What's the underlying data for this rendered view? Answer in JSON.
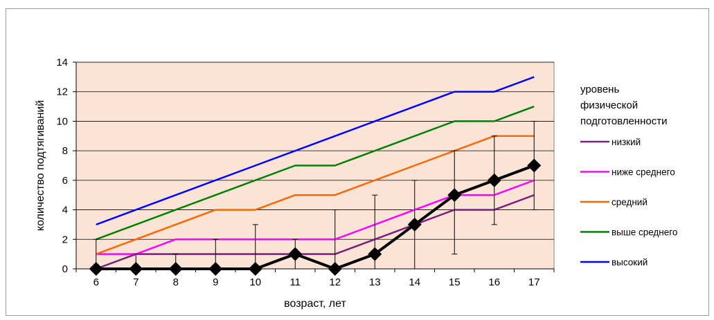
{
  "chart_data": {
    "type": "line",
    "xlabel": "возраст, лет",
    "ylabel": "количество подтягиваний",
    "x": [
      6,
      7,
      8,
      9,
      10,
      11,
      12,
      13,
      14,
      15,
      16,
      17
    ],
    "ylim": [
      0,
      14
    ],
    "yticks": [
      0,
      2,
      4,
      6,
      8,
      10,
      12,
      14
    ],
    "grid": true,
    "plot_background": "#fbe4d5",
    "legend": {
      "title_lines": [
        "уровень",
        "физической",
        "подготовленности"
      ],
      "placement": "right"
    },
    "series": [
      {
        "name": "низкий",
        "color": "#7b1f7b",
        "values": [
          0,
          1,
          1,
          1,
          1,
          1,
          1,
          2,
          3,
          4,
          4,
          5
        ]
      },
      {
        "name": "ниже среднего",
        "color": "#ff00ff",
        "values": [
          1,
          1,
          2,
          2,
          2,
          2,
          2,
          3,
          4,
          5,
          5,
          6
        ]
      },
      {
        "name": "средний",
        "color": "#ff6600",
        "values": [
          1,
          2,
          3,
          4,
          4,
          5,
          5,
          6,
          7,
          8,
          9,
          9
        ]
      },
      {
        "name": "выше среднего",
        "color": "#008000",
        "values": [
          2,
          3,
          4,
          5,
          6,
          7,
          7,
          8,
          9,
          10,
          10,
          11
        ]
      },
      {
        "name": "высокий",
        "color": "#0000ff",
        "values": [
          3,
          4,
          5,
          6,
          7,
          8,
          9,
          10,
          11,
          12,
          12,
          13
        ]
      }
    ],
    "measured": {
      "color": "#000000",
      "values": [
        0,
        0,
        0,
        0,
        0,
        1,
        0,
        1,
        3,
        5,
        6,
        7
      ],
      "error_low": [
        0,
        0,
        0,
        0,
        0,
        0,
        0,
        0,
        0,
        1,
        3,
        4
      ],
      "error_high": [
        2,
        1,
        1,
        2,
        3,
        2,
        4,
        5,
        6,
        8,
        9,
        10
      ]
    }
  }
}
